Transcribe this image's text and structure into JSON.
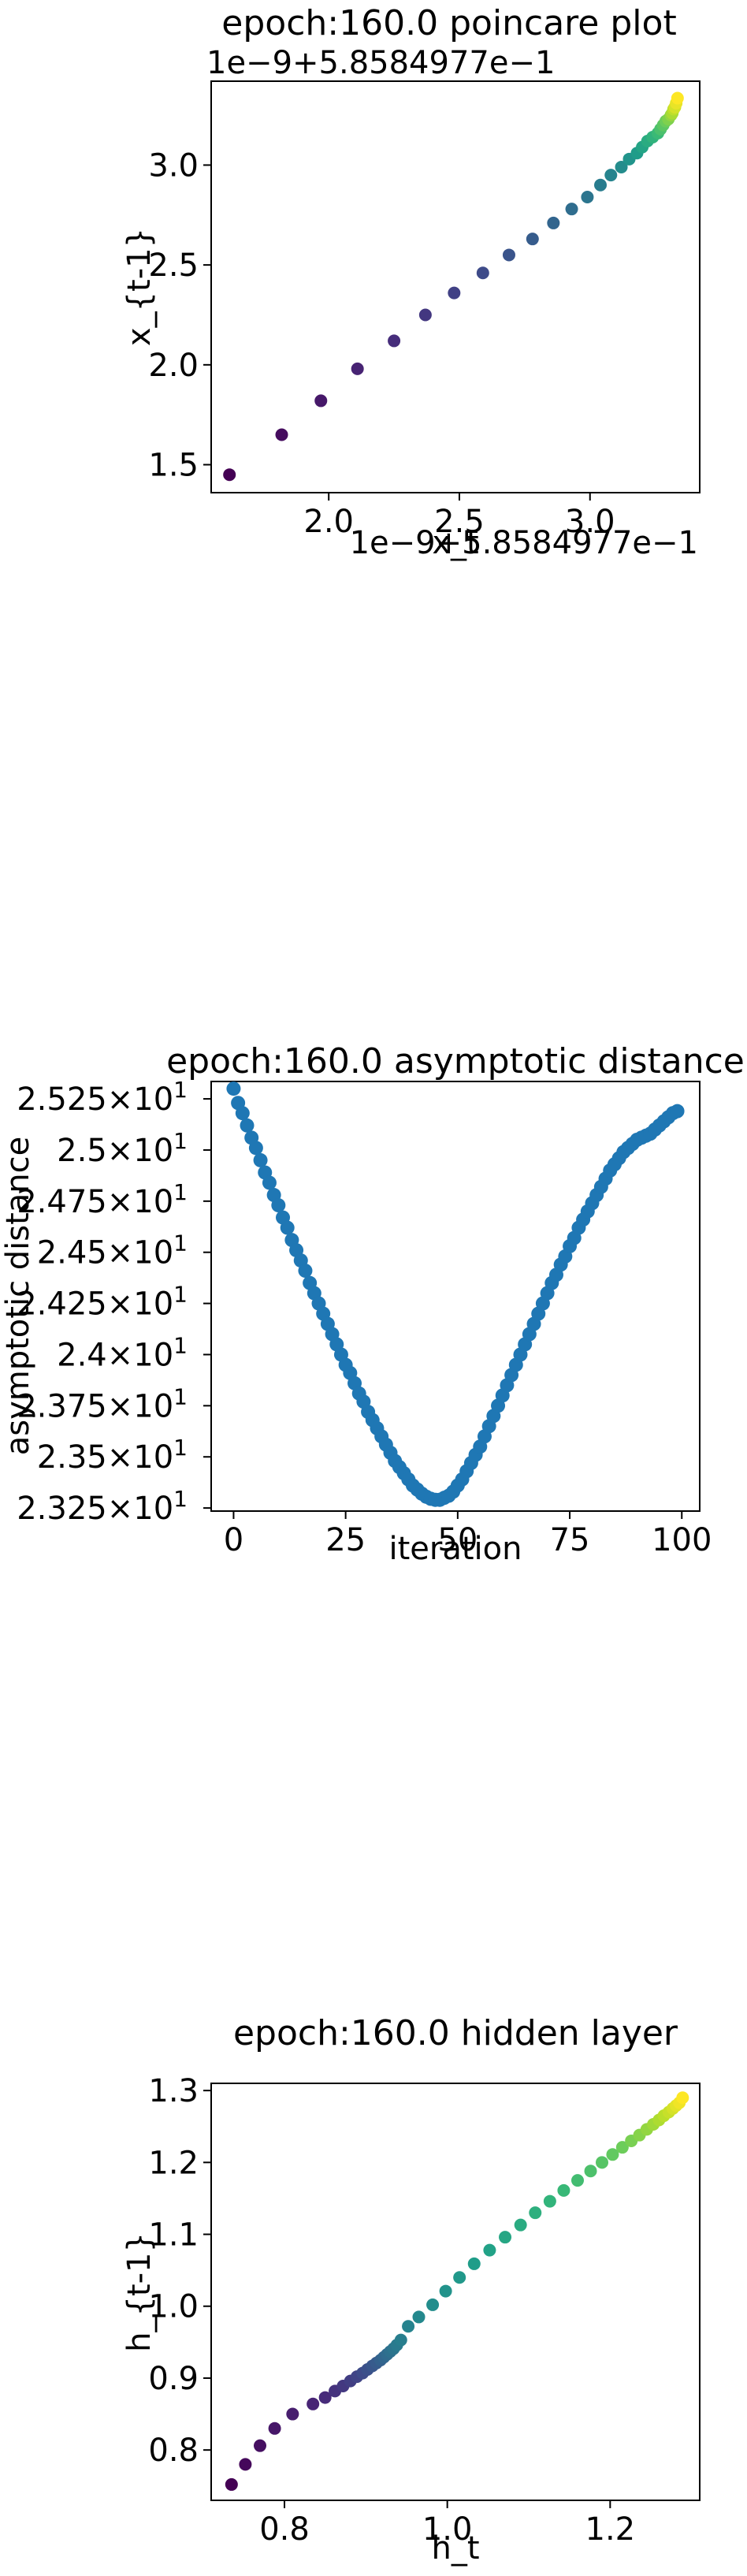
{
  "chart_data": [
    {
      "type": "scatter",
      "title": "epoch:160.0 poincare plot",
      "xlabel": "x_t",
      "ylabel": "x_{t-1}",
      "offset_label_x": "1e−9+5.8584977e−1",
      "offset_label_y": "1e−9+5.8584977e−1",
      "xlim": [
        1.55,
        3.42
      ],
      "ylim": [
        1.36,
        3.42
      ],
      "xticks": [
        2.0,
        2.5,
        3.0
      ],
      "xtick_labels": [
        "2.0",
        "2.5",
        "3.0"
      ],
      "yticks": [
        1.5,
        2.0,
        2.5,
        3.0
      ],
      "ytick_labels": [
        "1.5",
        "2.0",
        "2.5",
        "3.0"
      ],
      "colormap": "viridis",
      "x": [
        1.62,
        1.82,
        1.97,
        2.11,
        2.25,
        2.37,
        2.48,
        2.59,
        2.69,
        2.78,
        2.86,
        2.93,
        2.99,
        3.04,
        3.08,
        3.12,
        3.15,
        3.18,
        3.2,
        3.22,
        3.24,
        3.26,
        3.27,
        3.28,
        3.29,
        3.3,
        3.31,
        3.315,
        3.32,
        3.325,
        3.33,
        3.335
      ],
      "y": [
        1.45,
        1.65,
        1.82,
        1.98,
        2.12,
        2.25,
        2.36,
        2.46,
        2.55,
        2.63,
        2.71,
        2.78,
        2.84,
        2.9,
        2.95,
        2.99,
        3.03,
        3.06,
        3.09,
        3.12,
        3.14,
        3.16,
        3.18,
        3.2,
        3.22,
        3.23,
        3.25,
        3.26,
        3.28,
        3.29,
        3.31,
        3.335
      ]
    },
    {
      "type": "scatter",
      "title": "epoch:160.0 asymptotic distance",
      "xlabel": "iteration",
      "ylabel": "asymptotic distance",
      "xlim": [
        -5,
        104
      ],
      "ylim": [
        23.235,
        25.335
      ],
      "xticks": [
        0,
        25,
        50,
        75,
        100
      ],
      "xtick_labels": [
        "0",
        "25",
        "50",
        "75",
        "100"
      ],
      "yticks": [
        23.25,
        23.5,
        23.75,
        24.0,
        24.25,
        24.5,
        24.75,
        25.0,
        25.25
      ],
      "ytick_mantissas": [
        "2.325",
        "2.35",
        "2.375",
        "2.4",
        "2.425",
        "2.45",
        "2.475",
        "2.5",
        "2.525"
      ],
      "ytick_base": "×10",
      "ytick_exp": "1",
      "color": "#1f77b4",
      "values": [
        25.3,
        25.23,
        25.18,
        25.12,
        25.06,
        25.01,
        24.95,
        24.89,
        24.84,
        24.78,
        24.73,
        24.67,
        24.62,
        24.56,
        24.51,
        24.46,
        24.41,
        24.35,
        24.3,
        24.25,
        24.2,
        24.15,
        24.1,
        24.05,
        24.0,
        23.95,
        23.91,
        23.86,
        23.81,
        23.77,
        23.72,
        23.68,
        23.64,
        23.6,
        23.56,
        23.52,
        23.48,
        23.45,
        23.42,
        23.39,
        23.36,
        23.34,
        23.32,
        23.305,
        23.295,
        23.29,
        23.29,
        23.3,
        23.31,
        23.33,
        23.36,
        23.39,
        23.43,
        23.47,
        23.51,
        23.55,
        23.6,
        23.65,
        23.7,
        23.75,
        23.8,
        23.85,
        23.9,
        23.95,
        24.0,
        24.05,
        24.1,
        24.15,
        24.2,
        24.25,
        24.3,
        24.35,
        24.39,
        24.44,
        24.48,
        24.53,
        24.57,
        24.62,
        24.66,
        24.7,
        24.74,
        24.78,
        24.82,
        24.86,
        24.9,
        24.93,
        24.96,
        24.99,
        25.01,
        25.03,
        25.05,
        25.06,
        25.07,
        25.08,
        25.1,
        25.12,
        25.14,
        25.16,
        25.18,
        25.19
      ]
    },
    {
      "type": "scatter",
      "title": "epoch:160.0 hidden layer",
      "xlabel": "h_t",
      "ylabel": "h_{t-1}",
      "xlim": [
        0.71,
        1.31
      ],
      "ylim": [
        0.73,
        1.31
      ],
      "xticks": [
        0.8,
        1.0,
        1.2
      ],
      "xtick_labels": [
        "0.8",
        "1.0",
        "1.2"
      ],
      "yticks": [
        0.8,
        0.9,
        1.0,
        1.1,
        1.2,
        1.3
      ],
      "ytick_labels": [
        "0.8",
        "0.9",
        "1.0",
        "1.1",
        "1.2",
        "1.3"
      ],
      "colormap": "viridis",
      "x": [
        0.735,
        0.752,
        0.77,
        0.788,
        0.81,
        0.835,
        0.85,
        0.862,
        0.872,
        0.881,
        0.889,
        0.896,
        0.902,
        0.908,
        0.913,
        0.918,
        0.922,
        0.926,
        0.93,
        0.934,
        0.938,
        0.943,
        0.952,
        0.965,
        0.982,
        0.998,
        1.015,
        1.033,
        1.052,
        1.071,
        1.09,
        1.108,
        1.126,
        1.143,
        1.16,
        1.176,
        1.19,
        1.203,
        1.215,
        1.226,
        1.236,
        1.245,
        1.253,
        1.26,
        1.266,
        1.272,
        1.277,
        1.281,
        1.285,
        1.289
      ],
      "y": [
        0.752,
        0.78,
        0.806,
        0.83,
        0.85,
        0.864,
        0.873,
        0.882,
        0.889,
        0.896,
        0.902,
        0.907,
        0.912,
        0.917,
        0.921,
        0.925,
        0.929,
        0.933,
        0.937,
        0.941,
        0.946,
        0.953,
        0.972,
        0.985,
        1.002,
        1.021,
        1.04,
        1.059,
        1.078,
        1.096,
        1.113,
        1.13,
        1.146,
        1.161,
        1.175,
        1.188,
        1.2,
        1.211,
        1.221,
        1.23,
        1.238,
        1.246,
        1.253,
        1.259,
        1.265,
        1.27,
        1.275,
        1.279,
        1.283,
        1.29
      ]
    }
  ]
}
